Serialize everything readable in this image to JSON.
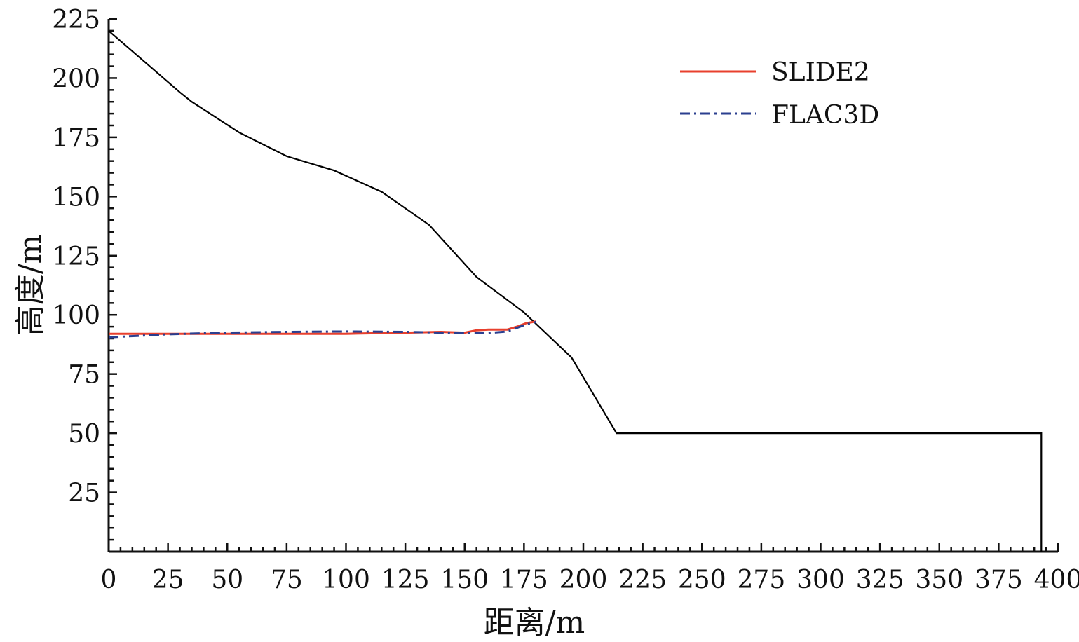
{
  "chart_data": {
    "type": "line",
    "title": "",
    "xlabel": "距离/m",
    "ylabel": "高度/m",
    "xlim": [
      0,
      400
    ],
    "ylim": [
      0,
      225
    ],
    "xticks": [
      0,
      25,
      50,
      75,
      100,
      125,
      150,
      175,
      200,
      225,
      250,
      275,
      300,
      325,
      350,
      375,
      400
    ],
    "yticks": [
      25,
      50,
      75,
      100,
      125,
      150,
      175,
      200,
      225
    ],
    "x_minor_step": 5,
    "y_minor_step": 5,
    "grid": false,
    "legend_position": "top-right",
    "slope_profile": {
      "color": "#000000",
      "x": [
        0,
        15,
        30,
        35,
        55,
        75,
        95,
        115,
        135,
        155,
        175,
        195,
        214,
        393,
        393
      ],
      "y": [
        220,
        207,
        194,
        190,
        177,
        167,
        161,
        152,
        138,
        116,
        101,
        82,
        50,
        50,
        0
      ]
    },
    "series": [
      {
        "name": "SLIDE2",
        "color": "#e8402e",
        "style": "solid",
        "x": [
          0,
          25,
          50,
          75,
          100,
          125,
          140,
          150,
          155,
          160,
          168,
          172,
          176,
          180
        ],
        "y": [
          92,
          92,
          92,
          92,
          92,
          92.5,
          92.8,
          92.5,
          93.5,
          93.8,
          93.8,
          95,
          96.5,
          97.2
        ]
      },
      {
        "name": "FLAC3D",
        "color": "#2b3f8f",
        "style": "dashdot",
        "x": [
          0,
          25,
          50,
          75,
          100,
          125,
          140,
          150,
          160,
          168,
          172,
          176,
          180
        ],
        "y": [
          90.5,
          91.8,
          92.5,
          92.8,
          93,
          92.8,
          92.5,
          92.3,
          92.3,
          93,
          94.5,
          96,
          97
        ]
      }
    ]
  }
}
